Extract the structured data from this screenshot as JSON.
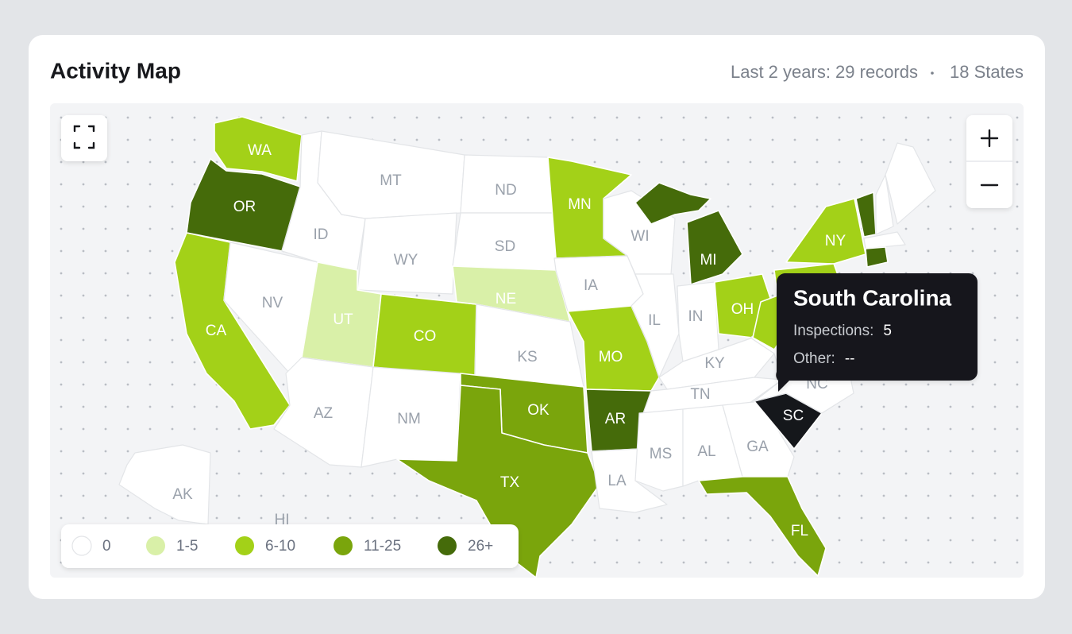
{
  "header": {
    "title": "Activity Map",
    "records": "Last 2 years: 29 records",
    "states": "18 States"
  },
  "legend": [
    {
      "label": "0",
      "color": "#ffffff"
    },
    {
      "label": "1-5",
      "color": "#d9f0a8"
    },
    {
      "label": "6-10",
      "color": "#a3d118"
    },
    {
      "label": "11-25",
      "color": "#7aa50c"
    },
    {
      "label": "26+",
      "color": "#456b0a"
    }
  ],
  "states": [
    {
      "label": "WA",
      "color": "#a3d118"
    },
    {
      "label": "OR",
      "color": "#456b0a"
    },
    {
      "label": "CA",
      "color": "#a3d118"
    },
    {
      "label": "NV",
      "color": "#ffffff"
    },
    {
      "label": "ID",
      "color": "#ffffff"
    },
    {
      "label": "MT",
      "color": "#ffffff"
    },
    {
      "label": "WY",
      "color": "#ffffff"
    },
    {
      "label": "UT",
      "color": "#d9f0a8"
    },
    {
      "label": "CO",
      "color": "#a3d118"
    },
    {
      "label": "AZ",
      "color": "#ffffff"
    },
    {
      "label": "NM",
      "color": "#ffffff"
    },
    {
      "label": "ND",
      "color": "#ffffff"
    },
    {
      "label": "SD",
      "color": "#ffffff"
    },
    {
      "label": "NE",
      "color": "#d9f0a8"
    },
    {
      "label": "KS",
      "color": "#ffffff"
    },
    {
      "label": "OK",
      "color": "#7aa50c"
    },
    {
      "label": "TX",
      "color": "#7aa50c"
    },
    {
      "label": "MN",
      "color": "#a3d118"
    },
    {
      "label": "IA",
      "color": "#ffffff"
    },
    {
      "label": "MO",
      "color": "#a3d118"
    },
    {
      "label": "AR",
      "color": "#456b0a"
    },
    {
      "label": "LA",
      "color": "#ffffff"
    },
    {
      "label": "WI",
      "color": "#ffffff"
    },
    {
      "label": "IL",
      "color": "#ffffff"
    },
    {
      "label": "MI",
      "color": "#456b0a"
    },
    {
      "label": "IN",
      "color": "#ffffff"
    },
    {
      "label": "OH",
      "color": "#a3d118"
    },
    {
      "label": "KY",
      "color": "#ffffff"
    },
    {
      "label": "TN",
      "color": "#ffffff"
    },
    {
      "label": "MS",
      "color": "#ffffff"
    },
    {
      "label": "AL",
      "color": "#ffffff"
    },
    {
      "label": "GA",
      "color": "#ffffff"
    },
    {
      "label": "FL",
      "color": "#7aa50c"
    },
    {
      "label": "SC",
      "color": "#15171b"
    },
    {
      "label": "NC",
      "color": "#ffffff"
    },
    {
      "label": "NY",
      "color": "#a3d118"
    },
    {
      "label": "AK",
      "color": "#ffffff"
    },
    {
      "label": "HI",
      "color": "#ffffff"
    },
    {
      "color": "#ffffff"
    },
    {
      "color": "#a3d118"
    },
    {
      "color": "#a3d118"
    },
    {
      "color": "#456b0a"
    },
    {
      "color": "#ffffff"
    },
    {
      "color": "#ffffff"
    },
    {
      "color": "#ffffff"
    },
    {
      "color": "#456b0a"
    }
  ],
  "tooltip": {
    "title": "South Carolina",
    "rows": [
      {
        "label": "Inspections:",
        "value": "5"
      },
      {
        "label": "Other:",
        "value": "--"
      }
    ]
  }
}
